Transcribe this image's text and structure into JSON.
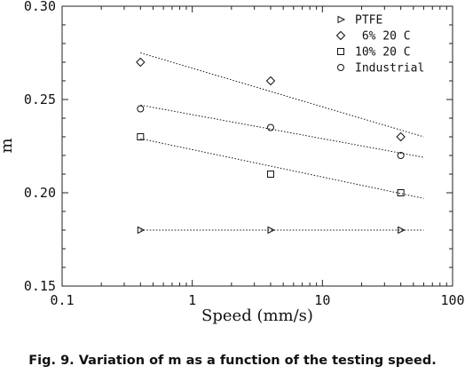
{
  "chart_data": {
    "type": "scatter",
    "xscale": "log",
    "xlim": [
      0.1,
      100
    ],
    "ylim": [
      0.15,
      0.3
    ],
    "xticks": [
      "0.1",
      "1",
      "10",
      "100"
    ],
    "yticks": [
      "0.15",
      "0.20",
      "0.25",
      "0.30"
    ],
    "xlabel": "Speed  (mm/s)",
    "ylabel": "m",
    "grid": false,
    "legend_position": "top-right",
    "series": [
      {
        "name": "PTFE",
        "marker": "triangle-right",
        "x": [
          0.4,
          4,
          40
        ],
        "y": [
          0.18,
          0.18,
          0.18
        ],
        "fit": {
          "x": [
            0.4,
            60
          ],
          "y": [
            0.18,
            0.18
          ]
        }
      },
      {
        "name": " 6% 20 C",
        "marker": "diamond",
        "x": [
          0.4,
          4,
          40
        ],
        "y": [
          0.27,
          0.26,
          0.23
        ],
        "fit": {
          "x": [
            0.4,
            60
          ],
          "y": [
            0.275,
            0.23
          ]
        }
      },
      {
        "name": "10% 20 C",
        "marker": "square",
        "x": [
          0.4,
          4,
          40
        ],
        "y": [
          0.23,
          0.21,
          0.2
        ],
        "fit": {
          "x": [
            0.4,
            60
          ],
          "y": [
            0.229,
            0.197
          ]
        }
      },
      {
        "name": "Industrial",
        "marker": "circle",
        "x": [
          0.4,
          4,
          40
        ],
        "y": [
          0.245,
          0.235,
          0.22
        ],
        "fit": {
          "x": [
            0.4,
            60
          ],
          "y": [
            0.247,
            0.219
          ]
        }
      }
    ]
  },
  "caption": "Fig. 9. Variation of m as a function of the testing speed."
}
